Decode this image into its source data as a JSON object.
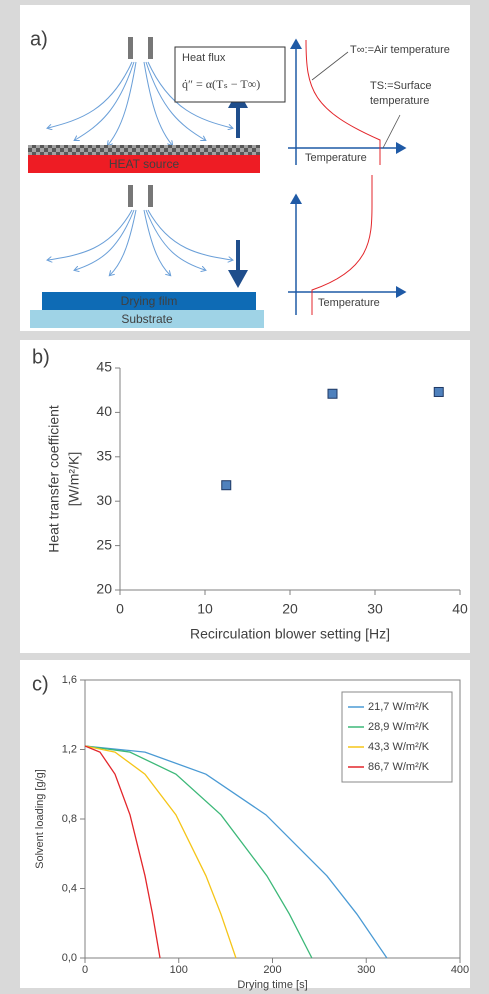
{
  "panel_a": {
    "label": "a)",
    "heat_flux": "Heat flux",
    "formula": "q̇″ = α(Tₛ − T∞)",
    "air_temp": "T∞:=Air temperature",
    "surface_temp": [
      "TS:=Surface",
      "temperature"
    ],
    "temperature_top": "Temperature",
    "temperature_bottom": "Temperature",
    "heat_source": "HEAT source",
    "drying_film": "Drying film",
    "substrate": "Substrate"
  },
  "chart_data": [
    {
      "type": "scatter",
      "label": "b)",
      "x_label": "Recirculation blower setting [Hz]",
      "y_label": [
        "Heat transfer coefficient",
        "[W/m²/K]"
      ],
      "x": [
        12.5,
        25,
        37.5
      ],
      "values": [
        31.8,
        42.1,
        42.3
      ],
      "color": "#4f81bd",
      "xlim": [
        0,
        40
      ],
      "xticks": [
        0,
        10,
        20,
        30,
        40
      ],
      "ylim": [
        20,
        45
      ],
      "yticks": [
        20,
        25,
        30,
        35,
        40,
        45
      ]
    },
    {
      "type": "line",
      "label": "c)",
      "x_label": "Drying time [s]",
      "y_label": "Solvent loading [g/g]",
      "legend": "upper right",
      "series": [
        {
          "name": "21,7 W/m²/K",
          "color": "#4a9ad4",
          "x": [
            0,
            64,
            129,
            193,
            258,
            290,
            322
          ],
          "values": [
            1.22,
            1.185,
            1.058,
            0.824,
            0.473,
            0.253,
            0
          ]
        },
        {
          "name": "28,9 W/m²/K",
          "color": "#3cb878",
          "x": [
            0,
            48,
            97,
            145,
            194,
            218,
            242
          ],
          "values": [
            1.22,
            1.185,
            1.058,
            0.824,
            0.473,
            0.253,
            0
          ]
        },
        {
          "name": "43,3 W/m²/K",
          "color": "#f5c518",
          "x": [
            0,
            32,
            64,
            97,
            129,
            145,
            161
          ],
          "values": [
            1.22,
            1.185,
            1.058,
            0.824,
            0.473,
            0.253,
            0
          ]
        },
        {
          "name": "86,7 W/m²/K",
          "color": "#e3262b",
          "x": [
            0,
            16,
            32,
            48,
            64,
            72,
            80
          ],
          "values": [
            1.22,
            1.185,
            1.058,
            0.824,
            0.473,
            0.253,
            0
          ]
        }
      ],
      "xlim": [
        0,
        400
      ],
      "xticks": [
        0,
        100,
        200,
        300,
        400
      ],
      "ylim": [
        0,
        1.6
      ],
      "yticks": [
        {
          "value": 0,
          "label": "0,0"
        },
        {
          "value": 0.4,
          "label": "0,4"
        },
        {
          "value": 0.8,
          "label": "0,8"
        },
        {
          "value": 1.2,
          "label": "1,2"
        },
        {
          "value": 1.6,
          "label": "1,6"
        }
      ]
    }
  ]
}
